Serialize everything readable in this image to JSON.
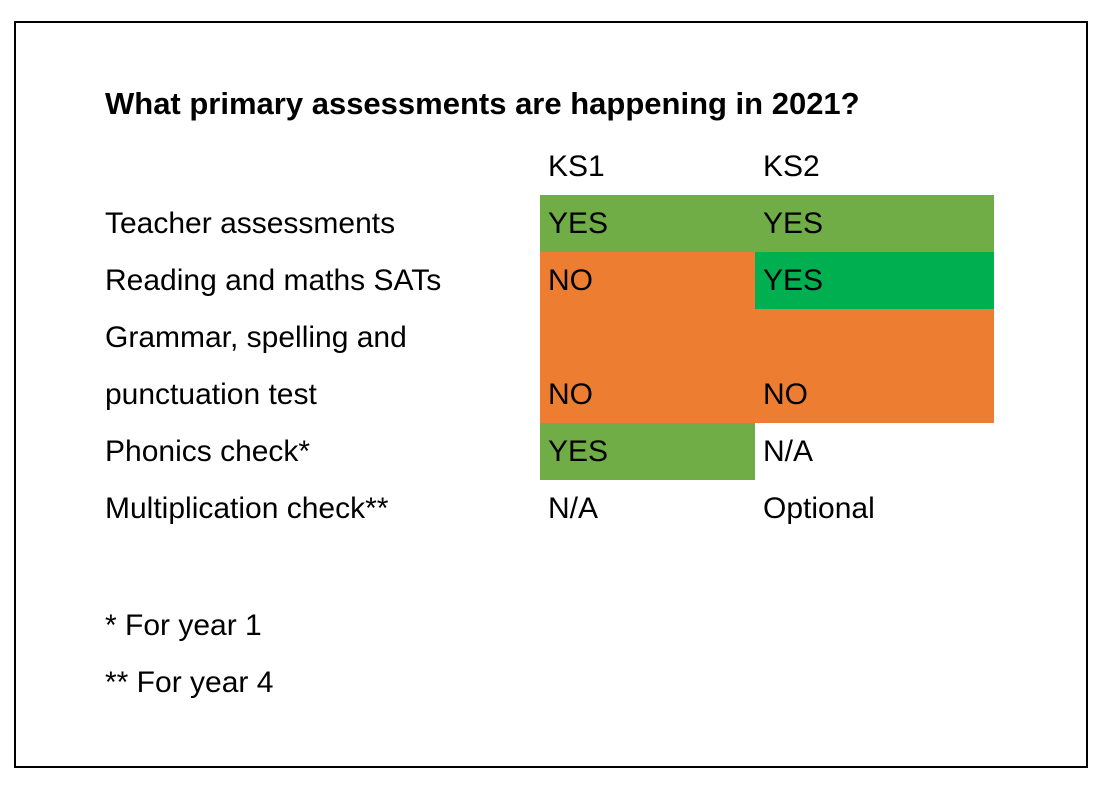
{
  "title": "What primary assessments are happening in 2021?",
  "table": {
    "columns": [
      "KS1",
      "KS2"
    ],
    "rows": [
      {
        "label": "Teacher assessments",
        "cells": [
          {
            "text": "YES",
            "fill": "#70ad47"
          },
          {
            "text": "YES",
            "fill": "#70ad47"
          }
        ]
      },
      {
        "label": "Reading and maths SATs",
        "cells": [
          {
            "text": "NO",
            "fill": "#ed7d31"
          },
          {
            "text": "YES",
            "fill": "#00b050"
          }
        ]
      },
      {
        "label": "Grammar, spelling and punctuation test",
        "cells": [
          {
            "text": "NO",
            "fill": "#ed7d31"
          },
          {
            "text": "NO",
            "fill": "#ed7d31"
          }
        ]
      },
      {
        "label": "Phonics check*",
        "cells": [
          {
            "text": "YES",
            "fill": "#70ad47"
          },
          {
            "text": "N/A"
          }
        ]
      },
      {
        "label": "Multiplication check**",
        "cells": [
          {
            "text": "N/A"
          },
          {
            "text": "Optional"
          }
        ]
      }
    ]
  },
  "notes": [
    "* For year 1",
    "** For year 4"
  ]
}
